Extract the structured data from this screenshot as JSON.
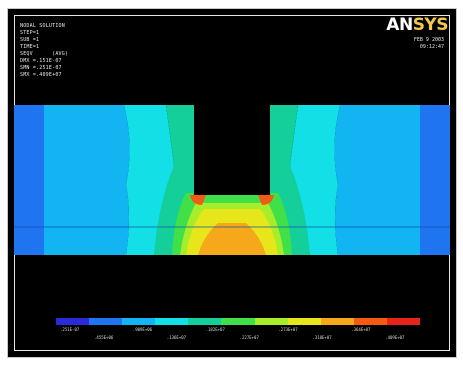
{
  "app": {
    "logo_prefix": "AN",
    "logo_suffix": "SYS"
  },
  "header_info": {
    "lines": [
      "NODAL SOLUTION",
      "STEP=1",
      "SUB =1",
      "TIME=1",
      "SEQV      (AVG)",
      "DMX =.151E-07",
      "SMN =.251E-07",
      "SMX =.409E+07"
    ],
    "right_lines": [
      "FEB  9 2003",
      "09:12:47"
    ]
  },
  "legend": {
    "colors": [
      "#2a2ad8",
      "#1f74f0",
      "#12b4f2",
      "#12e0e6",
      "#14cf9a",
      "#3fe04a",
      "#a6ee2a",
      "#e6e61a",
      "#f5a81a",
      "#f55a14",
      "#e8241a"
    ],
    "upper_labels": [
      ".251E-07",
      ".909E+06",
      ".182E+07",
      ".273E+07",
      ".364E+07"
    ],
    "lower_labels": [
      ".455E+06",
      ".136E+07",
      ".227E+07",
      ".318E+07",
      ".409E+07"
    ]
  },
  "palette": {
    "background": "#000000"
  }
}
